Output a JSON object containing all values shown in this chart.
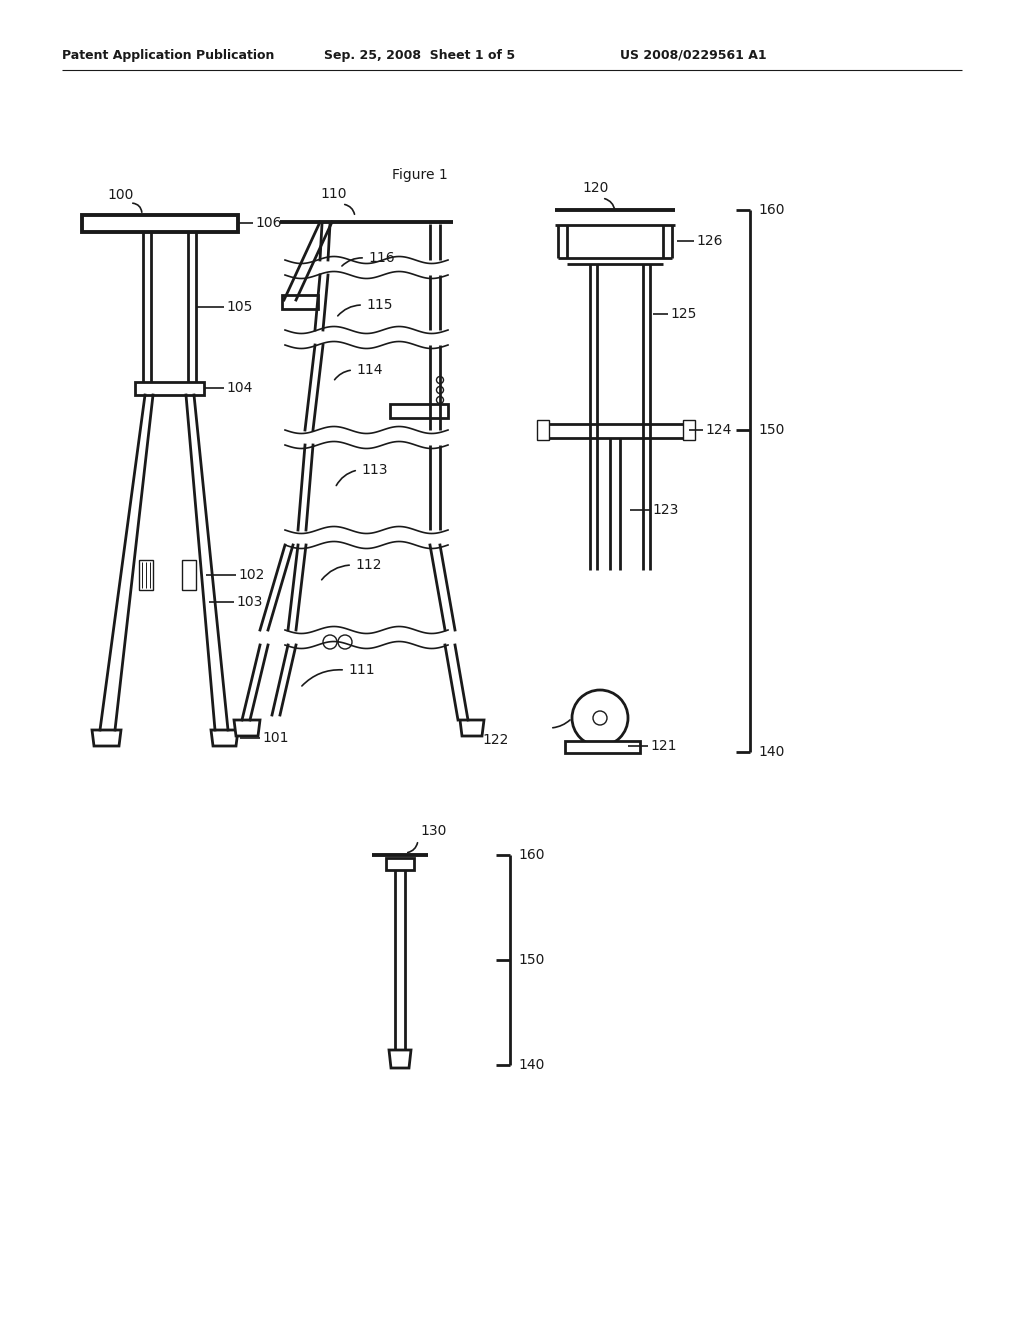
{
  "title": "Figure 1",
  "header_left": "Patent Application Publication",
  "header_mid": "Sep. 25, 2008  Sheet 1 of 5",
  "header_right": "US 2008/0229561 A1",
  "bg_color": "#ffffff",
  "line_color": "#1a1a1a",
  "figsize": [
    10.24,
    13.2
  ],
  "dpi": 100
}
